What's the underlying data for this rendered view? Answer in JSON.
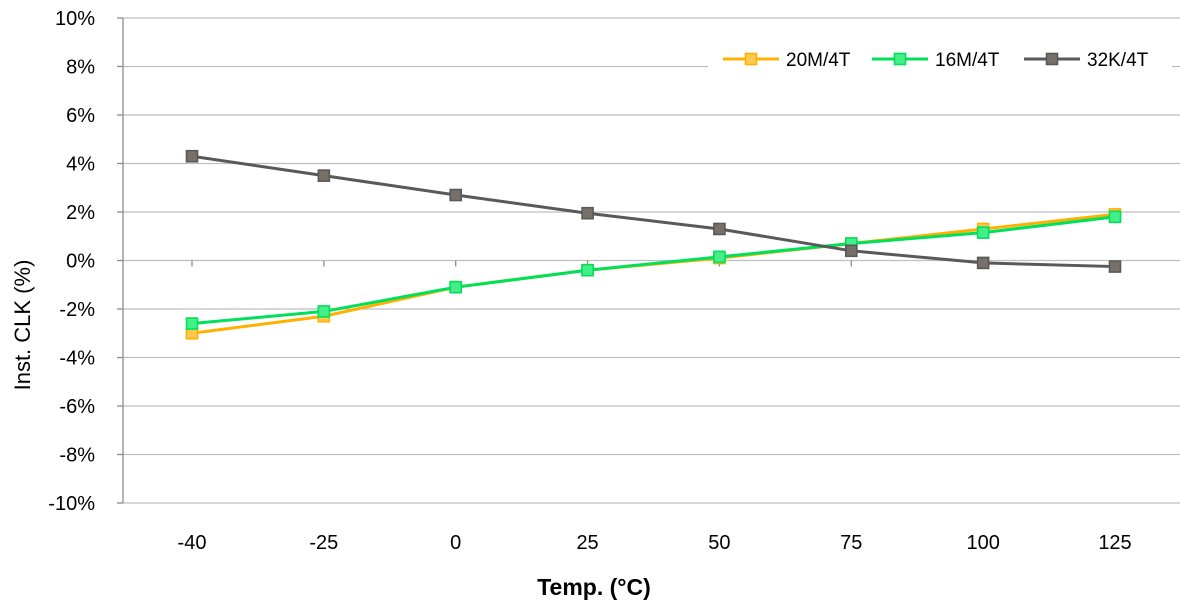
{
  "chart_data": {
    "type": "line",
    "xlabel": "Temp. (°C)",
    "ylabel": "Inst. CLK (%)",
    "categories": [
      "-40",
      "-25",
      "0",
      "25",
      "50",
      "75",
      "100",
      "125"
    ],
    "y_ticks": [
      "10%",
      "8%",
      "6%",
      "4%",
      "2%",
      "0%",
      "-2%",
      "-4%",
      "-6%",
      "-8%",
      "-10%"
    ],
    "ylim": [
      -10,
      10
    ],
    "y_unit": "%",
    "grid": true,
    "legend_position": "top-right",
    "series": [
      {
        "name": "20M/4T",
        "color": "#FFB000",
        "marker_fill": "#FFC850",
        "values": [
          -3.0,
          -2.3,
          -1.1,
          -0.4,
          0.1,
          0.7,
          1.3,
          1.9
        ]
      },
      {
        "name": "16M/4T",
        "color": "#00E05A",
        "marker_fill": "#44EE88",
        "values": [
          -2.6,
          -2.1,
          -1.1,
          -0.4,
          0.15,
          0.7,
          1.15,
          1.8
        ]
      },
      {
        "name": "32K/4T",
        "color": "#595959",
        "marker_fill": "#777068",
        "values": [
          4.3,
          3.5,
          2.7,
          1.95,
          1.3,
          0.4,
          -0.1,
          -0.25
        ]
      }
    ]
  }
}
